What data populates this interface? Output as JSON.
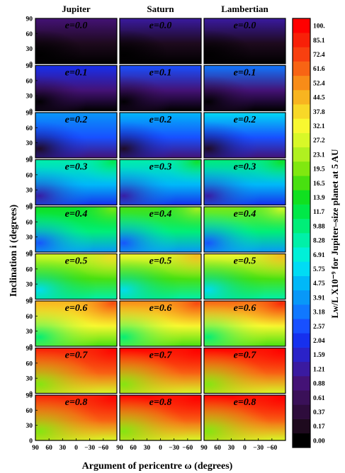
{
  "chart_data": {
    "type": "heatmap",
    "columns": [
      "Jupiter",
      "Saturn",
      "Lambertian"
    ],
    "rows": [
      {
        "label": "e=0.0",
        "e": 0.0
      },
      {
        "label": "e=0.1",
        "e": 0.1
      },
      {
        "label": "e=0.2",
        "e": 0.2
      },
      {
        "label": "e=0.3",
        "e": 0.3
      },
      {
        "label": "e=0.4",
        "e": 0.4
      },
      {
        "label": "e=0.5",
        "e": 0.5
      },
      {
        "label": "e=0.6",
        "e": 0.6
      },
      {
        "label": "e=0.7",
        "e": 0.7
      },
      {
        "label": "e=0.8",
        "e": 0.8
      }
    ],
    "row_label_prefix": "e",
    "xlabel": "Argument of pericentre ω (degrees)",
    "ylabel": "Inclination i (degrees)",
    "xlim": [
      90,
      -90
    ],
    "ylim": [
      0,
      90
    ],
    "xticks": [
      "90",
      "60",
      "30",
      "0",
      "−30",
      "−60"
    ],
    "yticks": [
      "0",
      "30",
      "60",
      "90"
    ],
    "colorbar": {
      "label": "Lw/L X10⁻⁹ for Jupiter–size planet at 5 AU",
      "levels": [
        "0.00",
        "0.17",
        "0.37",
        "0.61",
        "0.88",
        "1.21",
        "1.59",
        "2.04",
        "2.57",
        "3.18",
        "3.91",
        "4.75",
        "5.75",
        "6.91",
        "8.28",
        "9.88",
        "11.7",
        "13.9",
        "16.5",
        "19.5",
        "23.1",
        "27.2",
        "32.1",
        "37.8",
        "44.5",
        "52.4",
        "61.6",
        "72.4",
        "85.1",
        "100."
      ],
      "colors": [
        "#000000",
        "#1e0a1e",
        "#2e0c3c",
        "#3a1058",
        "#441276",
        "#3a1aa0",
        "#2a22c8",
        "#1630ee",
        "#1850ff",
        "#1078ff",
        "#0898f8",
        "#00b8f8",
        "#00dcf4",
        "#00f0d8",
        "#00f0a8",
        "#00ee78",
        "#00e848",
        "#10e020",
        "#48e010",
        "#80e810",
        "#b0f020",
        "#d8f828",
        "#f8f830",
        "#f8d828",
        "#f8b420",
        "#f88c18",
        "#f86414",
        "#f84010",
        "#f82008",
        "#ff0000"
      ]
    }
  }
}
